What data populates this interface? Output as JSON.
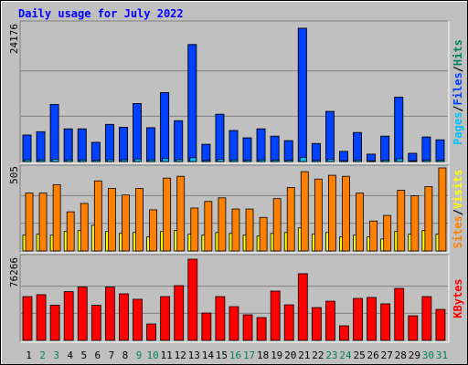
{
  "title": "Daily usage for July 2022",
  "separator": "/",
  "categories": [
    "1",
    "2",
    "3",
    "4",
    "5",
    "6",
    "7",
    "8",
    "9",
    "10",
    "11",
    "12",
    "13",
    "14",
    "15",
    "16",
    "17",
    "18",
    "19",
    "20",
    "21",
    "22",
    "23",
    "24",
    "25",
    "26",
    "27",
    "28",
    "29",
    "30",
    "31"
  ],
  "category_colors": [
    "#000000",
    "#00805c",
    "#00805c",
    "#000000",
    "#000000",
    "#000000",
    "#000000",
    "#000000",
    "#00805c",
    "#00805c",
    "#000000",
    "#000000",
    "#000000",
    "#000000",
    "#000000",
    "#00805c",
    "#00805c",
    "#000000",
    "#000000",
    "#000000",
    "#000000",
    "#000000",
    "#00805c",
    "#00805c",
    "#000000",
    "#000000",
    "#000000",
    "#000000",
    "#000000",
    "#00805c",
    "#00805c"
  ],
  "chart_data": [
    {
      "type": "bar",
      "ylim": [
        0,
        24176
      ],
      "yticks": [
        24176
      ],
      "grid": true,
      "series": [
        {
          "name": "Pages",
          "color": "#00c0ff",
          "values": [
            310,
            280,
            420,
            300,
            290,
            220,
            330,
            310,
            450,
            300,
            520,
            350,
            680,
            200,
            400,
            290,
            250,
            300,
            260,
            230,
            720,
            210,
            380,
            150,
            270,
            120,
            260,
            480,
            130,
            250,
            230
          ]
        },
        {
          "name": "Files",
          "color": "#0040ff",
          "values": [
            4700,
            5300,
            10150,
            5800,
            5800,
            3400,
            6600,
            6100,
            10300,
            6000,
            12250,
            7250,
            20800,
            3050,
            8400,
            5500,
            4200,
            5800,
            4500,
            3700,
            23700,
            3200,
            8900,
            1800,
            5150,
            1300,
            4500,
            11450,
            1450,
            4350,
            3850
          ]
        },
        {
          "name": "Hits",
          "color": "#00805c",
          "values": [
            4700,
            5300,
            10150,
            5800,
            5800,
            3400,
            6600,
            6100,
            10300,
            6000,
            12250,
            7250,
            20800,
            3050,
            8400,
            5500,
            4200,
            5800,
            4500,
            3700,
            23700,
            3200,
            8900,
            1800,
            5150,
            1300,
            4500,
            11450,
            1450,
            4350,
            3850
          ]
        }
      ]
    },
    {
      "type": "bar",
      "ylim": [
        0,
        505
      ],
      "yticks": [
        505
      ],
      "grid": true,
      "series": [
        {
          "name": "Sites",
          "color": "#ff8000",
          "values": [
            352,
            352,
            403,
            238,
            289,
            426,
            380,
            340,
            380,
            250,
            443,
            454,
            261,
            301,
            323,
            255,
            255,
            204,
            318,
            386,
            482,
            437,
            460,
            454,
            352,
            182,
            216,
            369,
            335,
            391,
            505
          ]
        },
        {
          "name": "Visits",
          "color": "#ffff00",
          "values": [
            96,
            102,
            96,
            118,
            124,
            156,
            118,
            107,
            112,
            85,
            118,
            124,
            102,
            96,
            112,
            107,
            96,
            90,
            107,
            112,
            140,
            102,
            112,
            85,
            96,
            85,
            73,
            118,
            102,
            124,
            102
          ]
        }
      ]
    },
    {
      "type": "bar",
      "ylim": [
        0,
        76266
      ],
      "yticks": [
        76266
      ],
      "grid": true,
      "series": [
        {
          "name": "KBytes",
          "color": "#ff0000",
          "values": [
            41100,
            42900,
            33000,
            45800,
            50100,
            33000,
            50100,
            43700,
            38600,
            15400,
            41100,
            51400,
            76266,
            25700,
            41100,
            31700,
            24000,
            21400,
            46300,
            33400,
            62600,
            30800,
            36800,
            13700,
            39400,
            40300,
            34300,
            48800,
            23100,
            41100,
            29100
          ]
        }
      ]
    }
  ]
}
